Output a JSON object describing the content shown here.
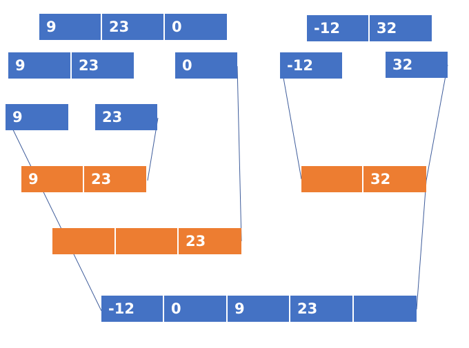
{
  "colors": {
    "split": "#4472c4",
    "merge": "#ed7d31",
    "connector": "#3d5b9a"
  },
  "arrays": [
    {
      "id": "top-left",
      "kind": "split",
      "cells": [
        "9",
        "23",
        "0"
      ]
    },
    {
      "id": "top-right",
      "kind": "split",
      "cells": [
        "-12",
        "32"
      ]
    },
    {
      "id": "split-9-23",
      "kind": "split",
      "cells": [
        "9",
        "23"
      ]
    },
    {
      "id": "split-0",
      "kind": "split",
      "cells": [
        "0"
      ]
    },
    {
      "id": "split-neg12",
      "kind": "split",
      "cells": [
        "-12"
      ]
    },
    {
      "id": "split-32",
      "kind": "split",
      "cells": [
        "32"
      ]
    },
    {
      "id": "split-9",
      "kind": "split",
      "cells": [
        "9"
      ]
    },
    {
      "id": "split-23",
      "kind": "split",
      "cells": [
        "23"
      ]
    },
    {
      "id": "merge-9-23",
      "kind": "merge",
      "cells": [
        "9",
        "23"
      ]
    },
    {
      "id": "merge-right",
      "kind": "merge",
      "cells": [
        "",
        "32"
      ]
    },
    {
      "id": "merge-left",
      "kind": "merge",
      "cells": [
        "",
        "",
        "23"
      ]
    },
    {
      "id": "result",
      "kind": "split",
      "cells": [
        "-12",
        "0",
        "9",
        "23",
        ""
      ]
    }
  ]
}
